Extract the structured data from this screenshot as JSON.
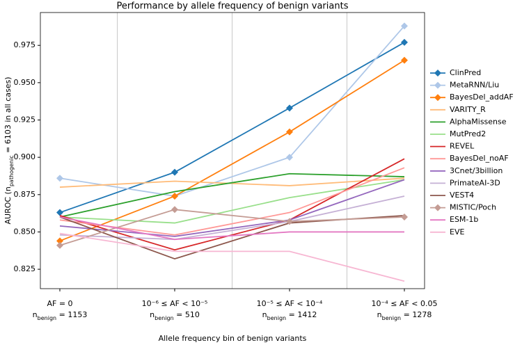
{
  "chart_data": {
    "type": "line",
    "title": "Performance by allele frequency of benign variants",
    "xlabel": "Allele frequency bin of benign variants",
    "ylabel": [
      {
        "text": "AUROC ("
      },
      {
        "text": "n"
      },
      {
        "text": "pathogenic",
        "sub": true
      },
      {
        "text": " = 6103 in all cases)"
      }
    ],
    "categories": [
      [
        [
          {
            "text": "AF = 0"
          }
        ],
        [
          {
            "text": "n"
          },
          {
            "text": "benign",
            "sub": true
          },
          {
            "text": " = 1153"
          }
        ]
      ],
      [
        [
          {
            "text": "10⁻⁶ ≤ AF < 10⁻⁵"
          }
        ],
        [
          {
            "text": "n"
          },
          {
            "text": "benign",
            "sub": true
          },
          {
            "text": " = 510"
          }
        ]
      ],
      [
        [
          {
            "text": "10⁻⁵ ≤ AF < 10⁻⁴"
          }
        ],
        [
          {
            "text": "n"
          },
          {
            "text": "benign",
            "sub": true
          },
          {
            "text": " = 1412"
          }
        ]
      ],
      [
        [
          {
            "text": "10⁻⁴ ≤ AF < 0.05"
          }
        ],
        [
          {
            "text": "n"
          },
          {
            "text": "benign",
            "sub": true
          },
          {
            "text": " = 1278"
          }
        ]
      ]
    ],
    "ylim": [
      0.812,
      0.997
    ],
    "yticks": [
      0.825,
      {
        "value": 0.85,
        "label": "0.850"
      },
      0.875,
      {
        "value": 0.9,
        "label": "0.900"
      },
      0.925,
      {
        "value": 0.95,
        "label": "0.950"
      },
      0.975
    ],
    "category_separators": true,
    "legend": "right",
    "series": [
      {
        "name": "ClinPred",
        "color": "#1f77b4",
        "marker": "diamond",
        "values": [
          0.863,
          0.89,
          0.933,
          0.977
        ]
      },
      {
        "name": "MetaRNN/Liu",
        "color": "#aec7e8",
        "marker": "diamond",
        "values": [
          0.886,
          0.874,
          0.9,
          0.988
        ]
      },
      {
        "name": "BayesDel_addAF",
        "color": "#ff7f0e",
        "marker": "diamond",
        "values": [
          0.844,
          0.874,
          0.917,
          0.965
        ]
      },
      {
        "name": "VARITY_R",
        "color": "#ffbb78",
        "values": [
          0.88,
          0.884,
          0.881,
          0.886
        ]
      },
      {
        "name": "AlphaMissense",
        "color": "#2ca02c",
        "values": [
          0.86,
          0.877,
          0.889,
          0.887
        ]
      },
      {
        "name": "MutPred2",
        "color": "#98df8a",
        "values": [
          0.86,
          0.856,
          0.873,
          0.885
        ]
      },
      {
        "name": "REVEL",
        "color": "#d62728",
        "values": [
          0.861,
          0.838,
          0.858,
          0.899
        ]
      },
      {
        "name": "BayesDel_noAF",
        "color": "#ff9896",
        "values": [
          0.858,
          0.848,
          0.863,
          0.893
        ]
      },
      {
        "name": "3Cnet/3billion",
        "color": "#9467bd",
        "values": [
          0.854,
          0.847,
          0.858,
          0.885
        ]
      },
      {
        "name": "PrimateAI-3D",
        "color": "#c5b0d5",
        "values": [
          0.848,
          0.845,
          0.857,
          0.874
        ]
      },
      {
        "name": "VEST4",
        "color": "#8c564b",
        "values": [
          0.86,
          0.832,
          0.856,
          0.861
        ]
      },
      {
        "name": "MISTIC/Poch",
        "color": "#c49c94",
        "marker": "diamond",
        "values": [
          0.841,
          0.865,
          0.857,
          0.86
        ]
      },
      {
        "name": "ESM-1b",
        "color": "#e377c2",
        "values": [
          0.86,
          0.845,
          0.85,
          0.85
        ]
      },
      {
        "name": "EVE",
        "color": "#f7b6d2",
        "values": [
          0.849,
          0.837,
          0.837,
          0.817
        ]
      }
    ]
  }
}
